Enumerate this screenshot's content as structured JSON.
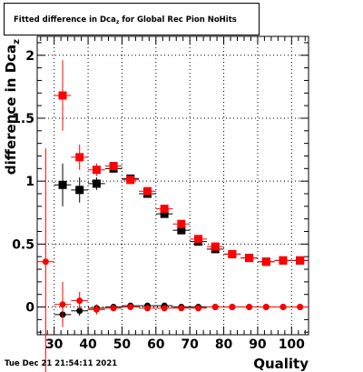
{
  "title": {
    "prefix": "Fitted difference in Dca",
    "sub": "z",
    "suffix": " for Global Rec Pion NoHits"
  },
  "timestamp": "Tue Dec 21 21:54:11 2021",
  "colors": {
    "black_series": "#000000",
    "red_series": "#ff0000",
    "grid": "#000000",
    "frame": "#000000"
  },
  "chart_data": {
    "type": "scatter",
    "title": "Fitted difference in Dcaz for Global Rec Pion NoHits",
    "xlabel": "Quality",
    "ylabel": "difference in Dca",
    "ylabel_sub": "z",
    "xlim": [
      25,
      105
    ],
    "ylim": [
      -0.22,
      2.15
    ],
    "x_ticks": [
      30,
      40,
      50,
      60,
      70,
      80,
      90,
      100
    ],
    "y_ticks": [
      0,
      0.5,
      1,
      1.5,
      2
    ],
    "y_tick_labels": [
      "0",
      "0.5",
      "1",
      "1.5",
      "2"
    ],
    "grid": true,
    "series": [
      {
        "color": "#000000",
        "marker": "square",
        "points": [
          {
            "x": 32.5,
            "y": 0.97,
            "err": 0.17
          },
          {
            "x": 37.5,
            "y": 0.93,
            "err": 0.1
          },
          {
            "x": 42.5,
            "y": 0.98,
            "err": 0.05
          },
          {
            "x": 47.5,
            "y": 1.1,
            "err": 0.03
          },
          {
            "x": 52.5,
            "y": 1.02,
            "err": 0.02
          },
          {
            "x": 57.5,
            "y": 0.9,
            "err": 0.02
          },
          {
            "x": 62.5,
            "y": 0.74,
            "err": 0.02
          },
          {
            "x": 67.5,
            "y": 0.61,
            "err": 0.02
          },
          {
            "x": 72.5,
            "y": 0.52,
            "err": 0.02
          },
          {
            "x": 77.5,
            "y": 0.46,
            "err": 0.01
          },
          {
            "x": 82.5,
            "y": 0.42,
            "err": 0.01
          },
          {
            "x": 87.5,
            "y": 0.39,
            "err": 0.01
          },
          {
            "x": 92.5,
            "y": 0.36,
            "err": 0.01
          },
          {
            "x": 97.5,
            "y": 0.37,
            "err": 0.01
          },
          {
            "x": 102.5,
            "y": 0.37,
            "err": 0.01
          }
        ]
      },
      {
        "color": "#ff0000",
        "marker": "square",
        "points": [
          {
            "x": 32.5,
            "y": 1.68,
            "err": 0.28
          },
          {
            "x": 37.5,
            "y": 1.19,
            "err": 0.1
          },
          {
            "x": 42.5,
            "y": 1.09,
            "err": 0.05
          },
          {
            "x": 47.5,
            "y": 1.12,
            "err": 0.03
          },
          {
            "x": 52.5,
            "y": 1.01,
            "err": 0.02
          },
          {
            "x": 57.5,
            "y": 0.92,
            "err": 0.02
          },
          {
            "x": 62.5,
            "y": 0.78,
            "err": 0.02
          },
          {
            "x": 67.5,
            "y": 0.66,
            "err": 0.02
          },
          {
            "x": 72.5,
            "y": 0.54,
            "err": 0.02
          },
          {
            "x": 77.5,
            "y": 0.48,
            "err": 0.01
          },
          {
            "x": 82.5,
            "y": 0.42,
            "err": 0.01
          },
          {
            "x": 87.5,
            "y": 0.39,
            "err": 0.01
          },
          {
            "x": 92.5,
            "y": 0.36,
            "err": 0.01
          },
          {
            "x": 97.5,
            "y": 0.37,
            "err": 0.01
          },
          {
            "x": 102.5,
            "y": 0.37,
            "err": 0.01
          }
        ]
      },
      {
        "color": "#000000",
        "marker": "circle",
        "points": [
          {
            "x": 32.5,
            "y": -0.06,
            "err": 0.07
          },
          {
            "x": 37.5,
            "y": -0.03,
            "err": 0.04
          },
          {
            "x": 42.5,
            "y": -0.01,
            "err": 0.03
          },
          {
            "x": 47.5,
            "y": 0.0,
            "err": 0.02
          },
          {
            "x": 52.5,
            "y": 0.01,
            "err": 0.01
          },
          {
            "x": 57.5,
            "y": 0.01,
            "err": 0.01
          },
          {
            "x": 62.5,
            "y": 0.01,
            "err": 0.01
          },
          {
            "x": 67.5,
            "y": 0.0,
            "err": 0.01
          },
          {
            "x": 72.5,
            "y": 0.0,
            "err": 0.01
          },
          {
            "x": 77.5,
            "y": 0.0,
            "err": 0.01
          },
          {
            "x": 82.5,
            "y": 0.0,
            "err": 0.01
          },
          {
            "x": 87.5,
            "y": 0.0,
            "err": 0.01
          },
          {
            "x": 92.5,
            "y": 0.0,
            "err": 0.01
          },
          {
            "x": 97.5,
            "y": 0.0,
            "err": 0.01
          },
          {
            "x": 102.5,
            "y": 0.0,
            "err": 0.01
          }
        ]
      },
      {
        "color": "#ff0000",
        "marker": "circle",
        "points": [
          {
            "x": 27.5,
            "y": 0.36,
            "err": 0.9
          },
          {
            "x": 32.5,
            "y": 0.02,
            "err": 0.18
          },
          {
            "x": 37.5,
            "y": 0.05,
            "err": 0.07
          },
          {
            "x": 42.5,
            "y": -0.02,
            "err": 0.04
          },
          {
            "x": 47.5,
            "y": -0.01,
            "err": 0.02
          },
          {
            "x": 52.5,
            "y": 0.0,
            "err": 0.01
          },
          {
            "x": 57.5,
            "y": -0.01,
            "err": 0.01
          },
          {
            "x": 62.5,
            "y": -0.01,
            "err": 0.01
          },
          {
            "x": 67.5,
            "y": -0.01,
            "err": 0.01
          },
          {
            "x": 72.5,
            "y": -0.01,
            "err": 0.01
          },
          {
            "x": 77.5,
            "y": 0.0,
            "err": 0.01
          },
          {
            "x": 82.5,
            "y": 0.0,
            "err": 0.01
          },
          {
            "x": 87.5,
            "y": 0.0,
            "err": 0.01
          },
          {
            "x": 92.5,
            "y": 0.0,
            "err": 0.01
          },
          {
            "x": 97.5,
            "y": 0.0,
            "err": 0.01
          },
          {
            "x": 102.5,
            "y": 0.0,
            "err": 0.01
          }
        ]
      }
    ]
  }
}
